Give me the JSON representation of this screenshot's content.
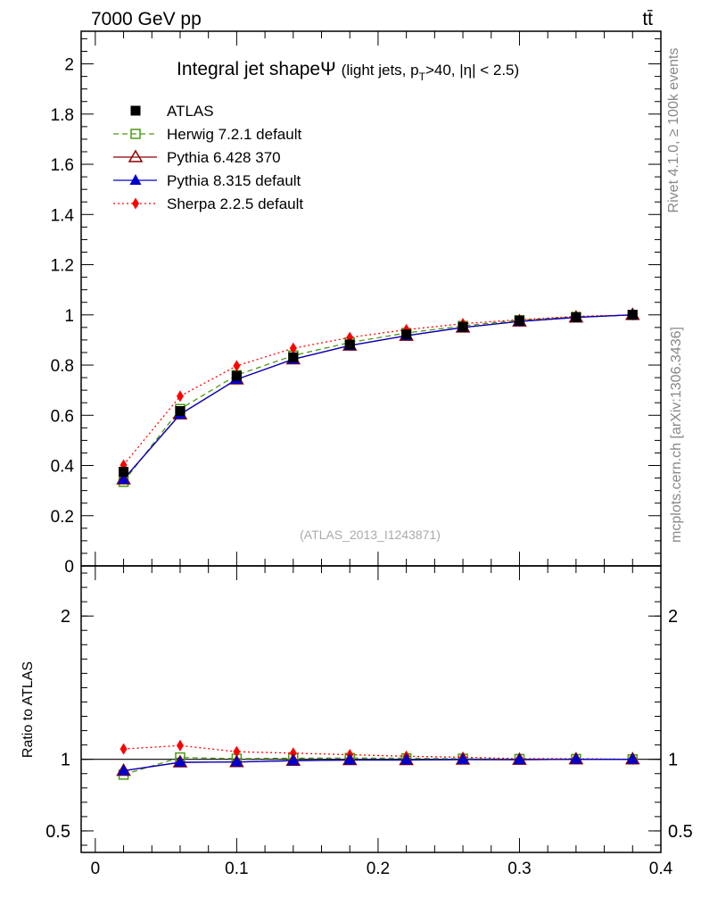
{
  "header": {
    "energy_label": "7000 GeV pp",
    "process_label": "tt̄"
  },
  "side_labels": {
    "rivet": "Rivet 4.1.0, ≥ 100k events",
    "mcplots": "mcplots.cern.ch [arXiv:1306.3436]"
  },
  "chart_data": [
    {
      "type": "line",
      "title_main": "Integral jet shapeΨ",
      "title_sub": "(light jets, p",
      "title_sub_T": "T",
      "title_sub_rest": ">40, |η| < 2.5)",
      "analysis_id": "(ATLAS_2013_I1243871)",
      "xlim": [
        -0.01,
        0.4
      ],
      "ylim": [
        0,
        2.13
      ],
      "yticks": [
        0,
        0.2,
        0.4,
        0.6,
        0.8,
        1,
        1.2,
        1.4,
        1.6,
        1.8,
        2
      ],
      "ytick_labels": [
        "0",
        "0.2",
        "0.4",
        "0.6",
        "0.8",
        "1",
        "1.2",
        "1.4",
        "1.6",
        "1.8",
        "2"
      ],
      "x": [
        0.02,
        0.06,
        0.1,
        0.14,
        0.18,
        0.22,
        0.26,
        0.3,
        0.34,
        0.38
      ],
      "series": [
        {
          "name": "ATLAS",
          "color": "#000000",
          "marker": "square-filled",
          "line": "none",
          "values": [
            0.375,
            0.617,
            0.757,
            0.831,
            0.882,
            0.922,
            0.952,
            0.977,
            0.99,
            1.0
          ]
        },
        {
          "name": "Herwig 7.2.1 default",
          "color": "#4a9a12",
          "marker": "square-open",
          "line": "dashed",
          "values": [
            0.335,
            0.625,
            0.76,
            0.838,
            0.89,
            0.928,
            0.956,
            0.979,
            0.992,
            1.0
          ]
        },
        {
          "name": "Pythia 6.428 370",
          "color": "#8b0000",
          "marker": "triangle-open",
          "line": "solid",
          "values": [
            0.345,
            0.604,
            0.743,
            0.823,
            0.878,
            0.917,
            0.95,
            0.974,
            0.99,
            1.0
          ]
        },
        {
          "name": "Pythia 8.315 default",
          "color": "#0000cc",
          "marker": "triangle-filled",
          "line": "solid",
          "values": [
            0.345,
            0.604,
            0.743,
            0.823,
            0.878,
            0.917,
            0.95,
            0.974,
            0.99,
            1.0
          ]
        },
        {
          "name": "Sherpa 2.2.5 default",
          "color": "#ff0000",
          "marker": "diamond-filled",
          "line": "dotted",
          "values": [
            0.402,
            0.676,
            0.797,
            0.867,
            0.91,
            0.941,
            0.965,
            0.981,
            0.994,
            1.0
          ]
        }
      ]
    },
    {
      "type": "line",
      "ylabel": "Ratio to ATLAS",
      "xlim": [
        -0.01,
        0.4
      ],
      "ylim": [
        0.35,
        2.35
      ],
      "xticks": [
        0,
        0.1,
        0.2,
        0.3,
        0.4
      ],
      "xtick_labels": [
        "0",
        "0.1",
        "0.2",
        "0.3",
        "0.4"
      ],
      "yticks": [
        0.5,
        1,
        2
      ],
      "ytick_labels": [
        "0.5",
        "1",
        "2"
      ],
      "reference": 1,
      "x": [
        0.02,
        0.06,
        0.1,
        0.14,
        0.18,
        0.22,
        0.26,
        0.3,
        0.34,
        0.38
      ],
      "series": [
        {
          "name": "Herwig 7.2.1 default",
          "values": [
            0.893,
            1.013,
            1.004,
            1.008,
            1.009,
            1.007,
            1.004,
            1.002,
            1.002,
            1.0
          ]
        },
        {
          "name": "Pythia 6.428 370",
          "values": [
            0.92,
            0.979,
            0.981,
            0.99,
            0.995,
            0.995,
            0.998,
            0.997,
            1.0,
            1.0
          ]
        },
        {
          "name": "Pythia 8.315 default",
          "values": [
            0.92,
            0.979,
            0.981,
            0.99,
            0.995,
            0.995,
            0.998,
            0.997,
            1.0,
            1.0
          ]
        },
        {
          "name": "Sherpa 2.2.5 default",
          "values": [
            1.072,
            1.096,
            1.053,
            1.043,
            1.032,
            1.021,
            1.014,
            1.004,
            1.004,
            1.0
          ]
        }
      ]
    }
  ]
}
